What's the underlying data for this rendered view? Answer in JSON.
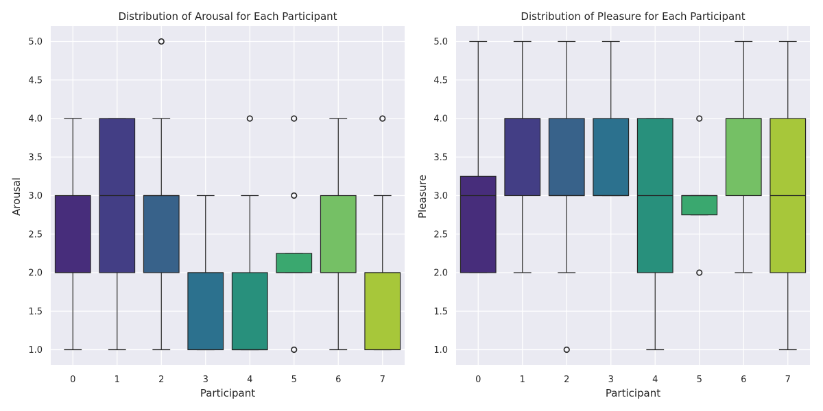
{
  "chart_data": [
    {
      "type": "box",
      "title": "Distribution of Arousal for Each Participant",
      "xlabel": "Participant",
      "ylabel": "Arousal",
      "categories": [
        "0",
        "1",
        "2",
        "3",
        "4",
        "5",
        "6",
        "7"
      ],
      "ylim": [
        0.8,
        5.2
      ],
      "yticks": [
        "1.0",
        "1.5",
        "2.0",
        "2.5",
        "3.0",
        "3.5",
        "4.0",
        "4.5",
        "5.0"
      ],
      "grid": true,
      "boxes": [
        {
          "whislo": 1,
          "q1": 2,
          "med": 2,
          "q3": 3,
          "whishi": 4,
          "fliers": [],
          "color": "#472d7b"
        },
        {
          "whislo": 1,
          "q1": 2,
          "med": 3,
          "q3": 4,
          "whishi": 4,
          "fliers": [],
          "color": "#433e85"
        },
        {
          "whislo": 1,
          "q1": 2,
          "med": 3,
          "q3": 3,
          "whishi": 4,
          "fliers": [
            5
          ],
          "color": "#38628a"
        },
        {
          "whislo": 1,
          "q1": 1,
          "med": 2,
          "q3": 2,
          "whishi": 3,
          "fliers": [],
          "color": "#2c718e"
        },
        {
          "whislo": 1,
          "q1": 1,
          "med": 1,
          "q3": 2,
          "whishi": 3,
          "fliers": [
            4
          ],
          "color": "#28907c"
        },
        {
          "whislo": 2,
          "q1": 2,
          "med": 2,
          "q3": 2.25,
          "whishi": 2.25,
          "fliers": [
            1,
            3,
            4
          ],
          "color": "#3aa86f"
        },
        {
          "whislo": 1,
          "q1": 2,
          "med": 2,
          "q3": 3,
          "whishi": 4,
          "fliers": [],
          "color": "#75c065"
        },
        {
          "whislo": 1,
          "q1": 1,
          "med": 2,
          "q3": 2,
          "whishi": 3,
          "fliers": [
            4
          ],
          "color": "#a7c73a"
        }
      ]
    },
    {
      "type": "box",
      "title": "Distribution of Pleasure for Each Participant",
      "xlabel": "Participant",
      "ylabel": "Pleasure",
      "categories": [
        "0",
        "1",
        "2",
        "3",
        "4",
        "5",
        "6",
        "7"
      ],
      "ylim": [
        0.8,
        5.2
      ],
      "yticks": [
        "1.0",
        "1.5",
        "2.0",
        "2.5",
        "3.0",
        "3.5",
        "4.0",
        "4.5",
        "5.0"
      ],
      "grid": true,
      "boxes": [
        {
          "whislo": 2,
          "q1": 2,
          "med": 3,
          "q3": 3.25,
          "whishi": 5,
          "fliers": [],
          "color": "#472d7b"
        },
        {
          "whislo": 2,
          "q1": 3,
          "med": 4,
          "q3": 4,
          "whishi": 5,
          "fliers": [],
          "color": "#433e85"
        },
        {
          "whislo": 2,
          "q1": 3,
          "med": 3,
          "q3": 4,
          "whishi": 5,
          "fliers": [
            1
          ],
          "color": "#38628a"
        },
        {
          "whislo": 3,
          "q1": 3,
          "med": 3,
          "q3": 4,
          "whishi": 5,
          "fliers": [],
          "color": "#2c718e"
        },
        {
          "whislo": 1,
          "q1": 2,
          "med": 3,
          "q3": 4,
          "whishi": 4,
          "fliers": [],
          "color": "#28907c"
        },
        {
          "whislo": 2.75,
          "q1": 2.75,
          "med": 3,
          "q3": 3,
          "whishi": 3,
          "fliers": [
            2,
            4
          ],
          "color": "#3aa86f"
        },
        {
          "whislo": 2,
          "q1": 3,
          "med": 4,
          "q3": 4,
          "whishi": 5,
          "fliers": [],
          "color": "#75c065"
        },
        {
          "whislo": 1,
          "q1": 2,
          "med": 3,
          "q3": 4,
          "whishi": 5,
          "fliers": [],
          "color": "#a7c73a"
        }
      ]
    }
  ],
  "style": {
    "plot_background": "#eaeaf2",
    "grid_color": "#ffffff",
    "line_color": "#262626",
    "flier_edge": "#262626"
  }
}
